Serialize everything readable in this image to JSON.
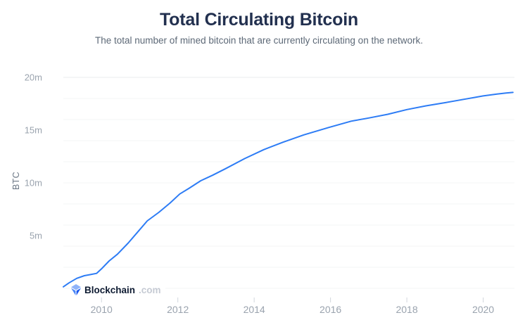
{
  "header": {
    "title": "Total Circulating Bitcoin",
    "subtitle": "The total number of mined bitcoin that are currently circulating on the network."
  },
  "watermark": {
    "brand": "Blockchain",
    "suffix": ".com",
    "icon": "blockchain-logo-icon"
  },
  "chart_data": {
    "type": "line",
    "title": "Total Circulating Bitcoin",
    "subtitle": "The total number of mined bitcoin that are currently circulating on the network.",
    "xlabel": "",
    "ylabel": "BTC",
    "y_unit": "millions of BTC",
    "x_range": [
      2009,
      2020.82
    ],
    "y_range": [
      0,
      20
    ],
    "grid": {
      "y_step": 2,
      "x_gridlines": false
    },
    "legend": "none",
    "x_ticks": [
      {
        "value": 2010,
        "label": "2010"
      },
      {
        "value": 2012,
        "label": "2012"
      },
      {
        "value": 2014,
        "label": "2014"
      },
      {
        "value": 2016,
        "label": "2016"
      },
      {
        "value": 2018,
        "label": "2018"
      },
      {
        "value": 2020,
        "label": "2020"
      }
    ],
    "y_ticks": [
      {
        "value": 5,
        "label": "5m"
      },
      {
        "value": 10,
        "label": "10m"
      },
      {
        "value": 15,
        "label": "15m"
      },
      {
        "value": 20,
        "label": "20m"
      }
    ],
    "series": [
      {
        "name": "Total Circulating Bitcoin",
        "color": "#2d7cf5",
        "points_format": [
          "year_decimal",
          "btc_millions"
        ],
        "points": [
          [
            2009.0,
            0.15
          ],
          [
            2009.15,
            0.52
          ],
          [
            2009.35,
            0.95
          ],
          [
            2009.55,
            1.2
          ],
          [
            2009.7,
            1.3
          ],
          [
            2009.87,
            1.42
          ],
          [
            2010.0,
            1.85
          ],
          [
            2010.2,
            2.6
          ],
          [
            2010.42,
            3.25
          ],
          [
            2010.7,
            4.3
          ],
          [
            2010.95,
            5.35
          ],
          [
            2011.2,
            6.4
          ],
          [
            2011.5,
            7.2
          ],
          [
            2011.8,
            8.1
          ],
          [
            2012.05,
            8.95
          ],
          [
            2012.3,
            9.5
          ],
          [
            2012.6,
            10.2
          ],
          [
            2012.91,
            10.72
          ],
          [
            2013.25,
            11.35
          ],
          [
            2013.75,
            12.3
          ],
          [
            2014.25,
            13.15
          ],
          [
            2014.75,
            13.85
          ],
          [
            2015.3,
            14.55
          ],
          [
            2015.95,
            15.25
          ],
          [
            2016.54,
            15.85
          ],
          [
            2017.0,
            16.15
          ],
          [
            2017.5,
            16.5
          ],
          [
            2018.0,
            16.95
          ],
          [
            2018.5,
            17.3
          ],
          [
            2019.0,
            17.6
          ],
          [
            2019.5,
            17.92
          ],
          [
            2020.0,
            18.24
          ],
          [
            2020.36,
            18.42
          ],
          [
            2020.6,
            18.52
          ],
          [
            2020.78,
            18.57
          ]
        ]
      }
    ],
    "colors": {
      "line": "#2d7cf5",
      "grid": "#f3f4f6",
      "grid_top": "#e9ebee",
      "tick": "#d2d7dd",
      "axis_text": "#9aa3ae",
      "title": "#22304f",
      "subtitle": "#5d6977",
      "brand_dark": "#0e1b32",
      "brand_gray": "#c5cad3",
      "logo_blues": [
        "#8fb3f9",
        "#4a86f7",
        "#1957ef"
      ]
    }
  }
}
